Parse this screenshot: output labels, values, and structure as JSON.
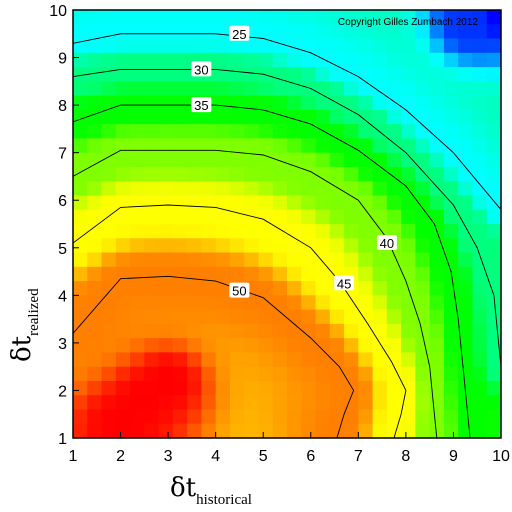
{
  "chart_data": {
    "type": "heatmap",
    "title": "",
    "copyright": "Copyright Gilles Zumbach 2012",
    "xlabel": {
      "symbol": "δt",
      "subscript": "historical"
    },
    "ylabel": {
      "symbol": "δt",
      "subscript": "realized"
    },
    "xlim": [
      1,
      10
    ],
    "ylim": [
      1,
      10
    ],
    "x_ticks": [
      "1",
      "2",
      "3",
      "4",
      "5",
      "6",
      "7",
      "8",
      "9",
      "10"
    ],
    "y_ticks": [
      "1",
      "2",
      "3",
      "4",
      "5",
      "6",
      "7",
      "8",
      "9",
      "10"
    ],
    "grid": false,
    "colormap": [
      "#ff0000",
      "#ffff00",
      "#00ff00",
      "#00ffff",
      "#0000ff"
    ],
    "value_range": [
      15,
      55
    ],
    "contours": [
      {
        "level": 25,
        "label": "25",
        "label_at": [
          4.5,
          9.5
        ],
        "points": [
          [
            1,
            9.3
          ],
          [
            2,
            9.5
          ],
          [
            3,
            9.5
          ],
          [
            4,
            9.5
          ],
          [
            5,
            9.4
          ],
          [
            6,
            9.1
          ],
          [
            7,
            8.6
          ],
          [
            8,
            7.9
          ],
          [
            9,
            7.0
          ],
          [
            10,
            5.8
          ]
        ]
      },
      {
        "level": 30,
        "label": "30",
        "label_at": [
          3.7,
          8.75
        ],
        "points": [
          [
            1,
            8.6
          ],
          [
            2,
            8.75
          ],
          [
            3,
            8.75
          ],
          [
            4,
            8.75
          ],
          [
            5,
            8.65
          ],
          [
            6,
            8.35
          ],
          [
            7,
            7.8
          ],
          [
            8,
            7.0
          ],
          [
            9,
            5.9
          ],
          [
            9.5,
            5.0
          ],
          [
            9.85,
            4.0
          ],
          [
            9.95,
            3.0
          ],
          [
            10,
            2.5
          ]
        ]
      },
      {
        "level": 35,
        "label": "35",
        "label_at": [
          3.7,
          8.0
        ],
        "points": [
          [
            1,
            7.65
          ],
          [
            2,
            8.0
          ],
          [
            3,
            8.0
          ],
          [
            4,
            8.0
          ],
          [
            5,
            7.9
          ],
          [
            6,
            7.6
          ],
          [
            7,
            7.05
          ],
          [
            8,
            6.3
          ],
          [
            8.6,
            5.5
          ],
          [
            8.95,
            4.5
          ],
          [
            9.1,
            3.5
          ],
          [
            9.2,
            2.5
          ],
          [
            9.3,
            1.5
          ],
          [
            9.35,
            1.0
          ]
        ]
      },
      {
        "level": 40,
        "label": "40",
        "label_at": [
          7.6,
          5.1
        ],
        "points": [
          [
            1,
            6.5
          ],
          [
            2,
            7.05
          ],
          [
            3,
            7.05
          ],
          [
            4,
            7.05
          ],
          [
            5,
            6.95
          ],
          [
            6,
            6.6
          ],
          [
            7,
            6.0
          ],
          [
            7.6,
            5.2
          ],
          [
            8.0,
            4.3
          ],
          [
            8.3,
            3.4
          ],
          [
            8.5,
            2.5
          ],
          [
            8.6,
            1.5
          ],
          [
            8.65,
            1.0
          ]
        ]
      },
      {
        "level": 45,
        "label": "45",
        "label_at": [
          6.7,
          4.25
        ],
        "points": [
          [
            1,
            5.1
          ],
          [
            2,
            5.85
          ],
          [
            3,
            5.9
          ],
          [
            4,
            5.85
          ],
          [
            5,
            5.6
          ],
          [
            6,
            5.0
          ],
          [
            6.6,
            4.3
          ],
          [
            7.2,
            3.4
          ],
          [
            7.7,
            2.6
          ],
          [
            8.0,
            2.0
          ],
          [
            7.9,
            1.5
          ],
          [
            7.75,
            1.0
          ]
        ]
      },
      {
        "level": 50,
        "label": "50",
        "label_at": [
          4.5,
          4.1
        ],
        "points": [
          [
            1,
            3.2
          ],
          [
            2,
            4.35
          ],
          [
            3,
            4.4
          ],
          [
            4,
            4.3
          ],
          [
            5,
            3.95
          ],
          [
            6,
            3.1
          ],
          [
            6.6,
            2.5
          ],
          [
            6.9,
            2.0
          ],
          [
            6.7,
            1.5
          ],
          [
            6.55,
            1.0
          ]
        ]
      }
    ]
  }
}
